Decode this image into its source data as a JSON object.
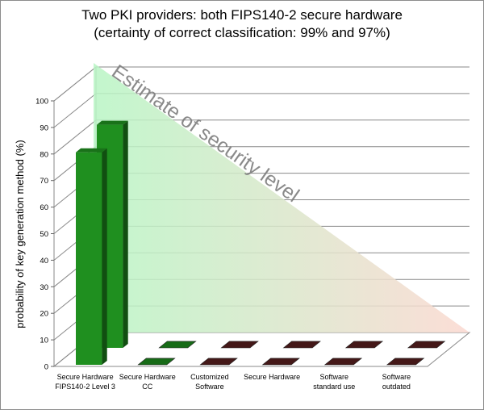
{
  "chart_data": {
    "type": "bar",
    "title": "Two PKI providers: both FIPS140-2 secure hardware",
    "subtitle": "(certainty of correct classification: 99% and 97%)",
    "ylabel": "probability of key generation method (%)",
    "xlabel": "",
    "ylim": [
      0,
      100
    ],
    "yticks": [
      "0",
      "10",
      "20",
      "30",
      "40",
      "50",
      "60",
      "70",
      "80",
      "90",
      "100"
    ],
    "grid": true,
    "legend": "none",
    "categories": [
      [
        "Secure Hardware",
        "FIPS140-2 Level 3"
      ],
      [
        "Secure Hardware",
        "CC"
      ],
      [
        "Customized",
        "Software"
      ],
      [
        "Secure Hardware"
      ],
      [
        "Software",
        "standard use"
      ],
      [
        "Software",
        "outdated"
      ]
    ],
    "series": [
      {
        "values": [
          80,
          0,
          0,
          0,
          0,
          0
        ]
      },
      {
        "values": [
          84,
          0,
          0,
          0,
          0,
          0
        ]
      }
    ],
    "annotation": "Estimate of security level",
    "colors": {
      "bar_green": "#1f8f1f",
      "bar_dark_red": "#5a2020",
      "wedge_green": "#b8f5c4",
      "wedge_red": "#fbd8d0"
    }
  }
}
